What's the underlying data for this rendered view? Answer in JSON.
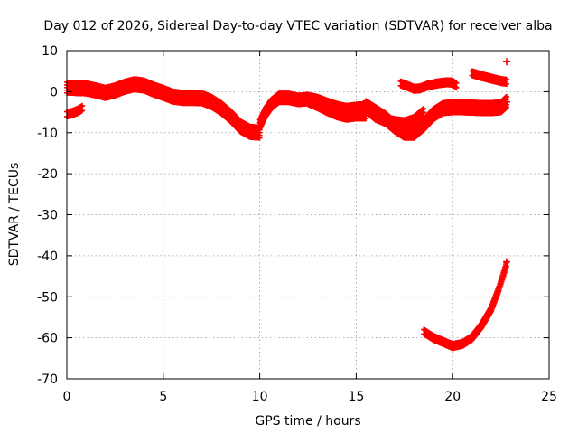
{
  "chart_data": {
    "type": "scatter",
    "title": "Day 012 of 2026, Sidereal Day-to-day VTEC variation (SDTVAR) for receiver alba",
    "xlabel": "GPS time / hours",
    "ylabel": "SDTVAR / TECUs",
    "xlim": [
      0,
      25
    ],
    "ylim": [
      -70,
      10
    ],
    "xticks": [
      0,
      5,
      10,
      15,
      20,
      25
    ],
    "yticks": [
      -70,
      -60,
      -50,
      -40,
      -30,
      -20,
      -10,
      0,
      10
    ],
    "grid": true,
    "series_color": "#ff0000",
    "series": [
      {
        "name": "track-a",
        "width": 2.6,
        "points": [
          [
            0,
            1
          ],
          [
            0.5,
            0.9
          ],
          [
            1,
            0.8
          ],
          [
            1.5,
            0.3
          ],
          [
            2,
            -0.3
          ],
          [
            2.5,
            0.3
          ],
          [
            3,
            1.2
          ],
          [
            3.5,
            1.8
          ],
          [
            4,
            1.5
          ],
          [
            4.5,
            0.5
          ],
          [
            5,
            -0.3
          ],
          [
            5.5,
            -1.2
          ],
          [
            6,
            -1.5
          ],
          [
            6.5,
            -1.5
          ],
          [
            7,
            -1.6
          ],
          [
            7.5,
            -2.5
          ],
          [
            8,
            -4
          ],
          [
            8.5,
            -6
          ],
          [
            9,
            -8.5
          ],
          [
            9.5,
            -9.8
          ],
          [
            10,
            -10
          ]
        ]
      },
      {
        "name": "track-b",
        "width": 1.2,
        "points": [
          [
            0,
            -5.5
          ],
          [
            0.3,
            -5.2
          ],
          [
            0.6,
            -4.6
          ],
          [
            0.8,
            -4
          ]
        ]
      },
      {
        "name": "track-c",
        "width": 2.2,
        "points": [
          [
            10,
            -8
          ],
          [
            10.3,
            -5
          ],
          [
            10.6,
            -3
          ],
          [
            11,
            -1.5
          ],
          [
            11.5,
            -1.5
          ],
          [
            12,
            -2
          ],
          [
            12.5,
            -1.8
          ],
          [
            13,
            -2.3
          ],
          [
            13.5,
            -3.2
          ],
          [
            14,
            -4
          ],
          [
            14.5,
            -4.5
          ],
          [
            15,
            -4.2
          ],
          [
            15.5,
            -4
          ]
        ]
      },
      {
        "name": "track-d",
        "width": 2.2,
        "points": [
          [
            12.5,
            -2
          ],
          [
            13,
            -3
          ],
          [
            13.5,
            -4.2
          ],
          [
            14,
            -5.2
          ],
          [
            14.5,
            -5.8
          ],
          [
            15,
            -5.5
          ],
          [
            15.5,
            -5.5
          ]
        ]
      },
      {
        "name": "track-e",
        "width": 2.6,
        "points": [
          [
            15.5,
            -3.5
          ],
          [
            16,
            -5
          ],
          [
            16.5,
            -6.5
          ],
          [
            17,
            -8.5
          ],
          [
            17.5,
            -10
          ],
          [
            18,
            -10
          ],
          [
            18.5,
            -8
          ],
          [
            19,
            -5.5
          ],
          [
            19.5,
            -4
          ],
          [
            20,
            -3.8
          ],
          [
            20.5,
            -3.8
          ],
          [
            21,
            -3.9
          ],
          [
            21.5,
            -4
          ],
          [
            22,
            -4
          ],
          [
            22.5,
            -3.8
          ],
          [
            22.8,
            -2.5
          ]
        ]
      },
      {
        "name": "track-f",
        "width": 1.8,
        "points": [
          [
            15.5,
            -4
          ],
          [
            16,
            -6
          ],
          [
            16.5,
            -7
          ],
          [
            17,
            -7.5
          ],
          [
            17.5,
            -7.8
          ],
          [
            18,
            -7
          ],
          [
            18.5,
            -5
          ]
        ]
      },
      {
        "name": "track-g",
        "width": 1.1,
        "points": [
          [
            17.3,
            2
          ],
          [
            17.6,
            1.5
          ],
          [
            18,
            0.7
          ],
          [
            18.3,
            0.8
          ],
          [
            18.7,
            1.5
          ],
          [
            19.2,
            2
          ],
          [
            19.7,
            2.3
          ],
          [
            20,
            2.2
          ],
          [
            20.2,
            1.5
          ]
        ]
      },
      {
        "name": "track-h",
        "width": 1.1,
        "points": [
          [
            21,
            4.5
          ],
          [
            21.5,
            3.8
          ],
          [
            22,
            3.2
          ],
          [
            22.5,
            2.6
          ],
          [
            22.8,
            2.4
          ]
        ]
      },
      {
        "name": "track-i",
        "width": 1.1,
        "points": [
          [
            18.5,
            -58.5
          ],
          [
            19,
            -60
          ],
          [
            19.5,
            -61
          ],
          [
            20,
            -62
          ],
          [
            20.5,
            -61.5
          ],
          [
            21,
            -60
          ],
          [
            21.5,
            -57
          ],
          [
            22,
            -53
          ],
          [
            22.4,
            -48
          ],
          [
            22.8,
            -42
          ]
        ]
      }
    ],
    "markers": [
      {
        "x": 22.8,
        "y": 7.3
      },
      {
        "x": 22.8,
        "y": -2.5
      },
      {
        "x": 22.8,
        "y": -41.5
      }
    ]
  }
}
